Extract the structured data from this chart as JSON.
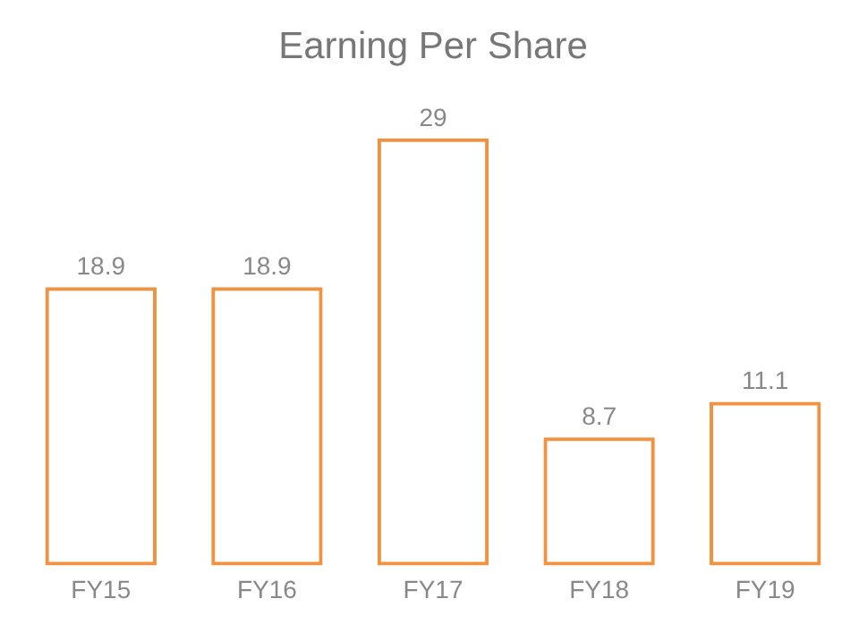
{
  "chart_data": {
    "type": "bar",
    "title": "Earning Per Share",
    "categories": [
      "FY15",
      "FY16",
      "FY17",
      "FY18",
      "FY19"
    ],
    "values": [
      18.9,
      18.9,
      29,
      8.7,
      11.1
    ],
    "color": "#f0923f",
    "data_labels": true,
    "grid": false,
    "legend": false
  }
}
